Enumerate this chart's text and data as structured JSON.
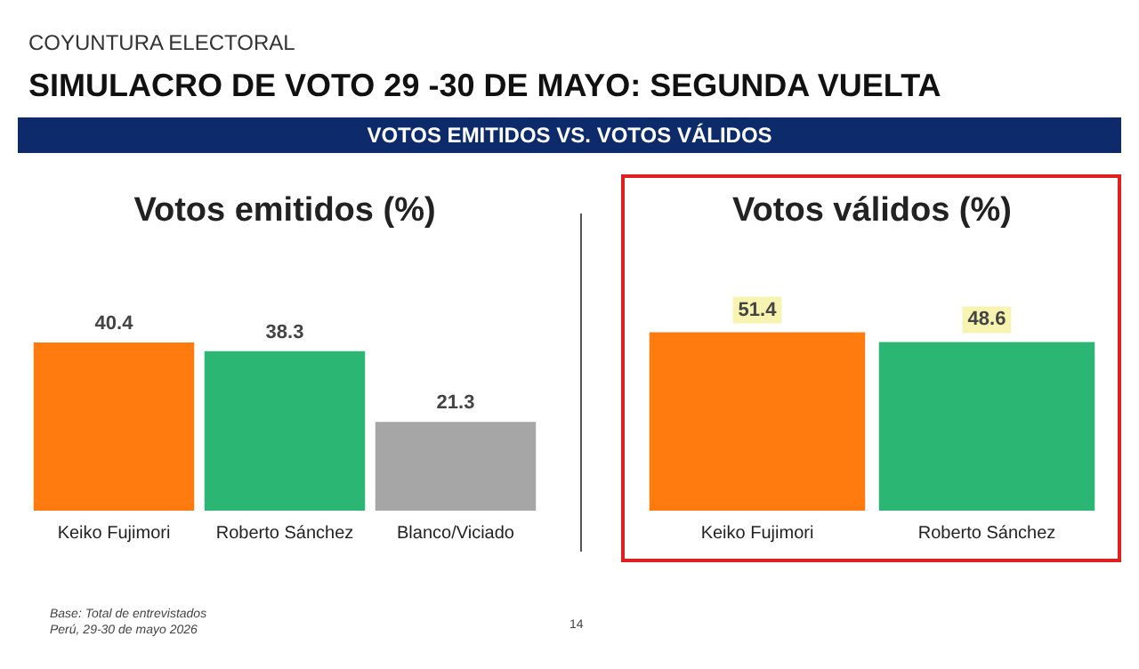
{
  "chart_data": [
    {
      "type": "bar",
      "title": "Votos emitidos (%)",
      "categories": [
        "Keiko Fujimori",
        "Roberto Sánchez",
        "Blanco/Viciado"
      ],
      "values": [
        40.4,
        38.3,
        21.3
      ],
      "colors": [
        "#ff7b0f",
        "#2bb673",
        "#a6a6a6"
      ],
      "data_labels": true,
      "annotations": [
        "COYUNTURA ELECTORAL",
        "SIMULACRO DE VOTO 29 -30 DE MAYO: SEGUNDA VUELTA",
        "VOTOS EMITIDOS VS. VOTOS VÁLIDOS",
        "Base: Total de entrevistados",
        "Perú, 29-30 de mayo 2026",
        "14"
      ]
    },
    {
      "type": "bar",
      "title": "Votos válidos (%)",
      "categories": [
        "Keiko Fujimori",
        "Roberto Sánchez"
      ],
      "values": [
        51.4,
        48.6
      ],
      "colors": [
        "#ff7b0f",
        "#2bb673"
      ],
      "data_labels": true
    }
  ]
}
